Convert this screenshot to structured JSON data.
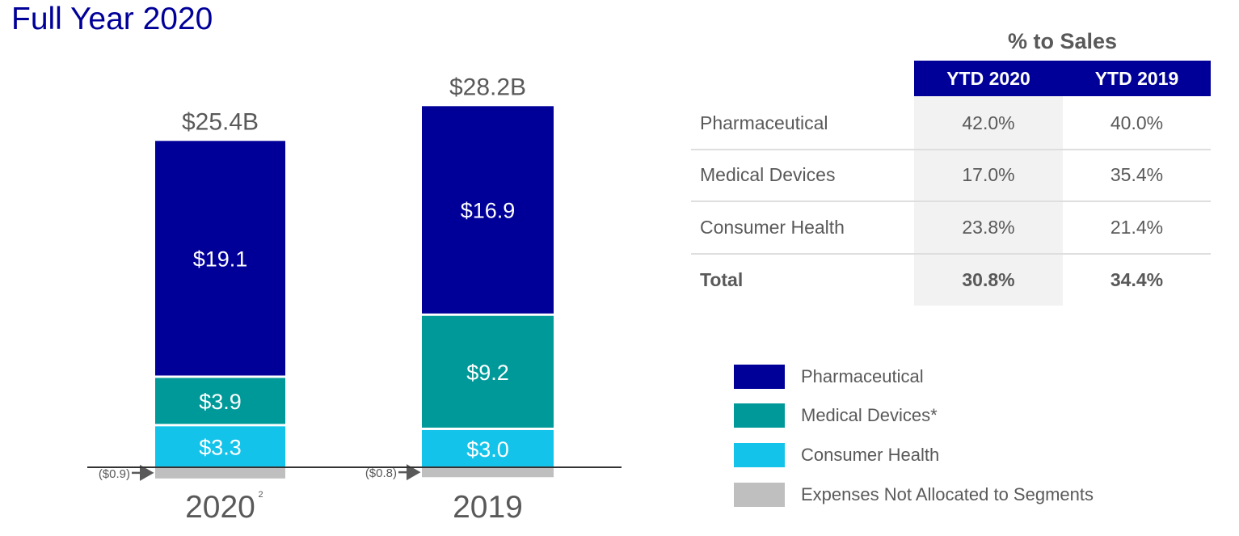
{
  "header": {
    "title": "Full Year 2020"
  },
  "colors": {
    "pharmaceutical": "#000099",
    "medical_devices": "#009999",
    "consumer_health": "#14c3ea",
    "expenses": "#bfbfbf",
    "label_text": "#595959"
  },
  "chart_data": {
    "type": "bar",
    "stacked": true,
    "title": "Full Year 2020",
    "xlabel": "",
    "ylabel": "",
    "categories": [
      "2020",
      "2019"
    ],
    "category_footnotes": [
      "2",
      ""
    ],
    "totals": [
      25.4,
      28.2
    ],
    "total_labels": [
      "$25.4B",
      "$28.2B"
    ],
    "series": [
      {
        "name": "Expenses Not Allocated to Segments",
        "key": "expenses",
        "values": [
          -0.9,
          -0.8
        ],
        "labels": [
          "($0.9)",
          "($0.8)"
        ]
      },
      {
        "name": "Consumer Health",
        "key": "consumer_health",
        "values": [
          3.3,
          3.0
        ],
        "labels": [
          "$3.3",
          "$3.0"
        ]
      },
      {
        "name": "Medical Devices*",
        "key": "medical_devices",
        "values": [
          3.9,
          9.2
        ],
        "labels": [
          "$3.9",
          "$9.2"
        ]
      },
      {
        "name": "Pharmaceutical",
        "key": "pharmaceutical",
        "values": [
          19.1,
          16.9
        ],
        "labels": [
          "$19.1",
          "$16.9"
        ]
      }
    ],
    "units": "$B",
    "grid": false,
    "legend_position": "bottom-right"
  },
  "table": {
    "caption": "% to Sales",
    "columns": [
      "YTD 2020",
      "YTD 2019"
    ],
    "rows": [
      {
        "label": "Pharmaceutical",
        "values": [
          "42.0%",
          "40.0%"
        ]
      },
      {
        "label": "Medical Devices",
        "values": [
          "17.0%",
          "35.4%"
        ]
      },
      {
        "label": "Consumer Health",
        "values": [
          "23.8%",
          "21.4%"
        ]
      },
      {
        "label": "Total",
        "values": [
          "30.8%",
          "34.4%"
        ]
      }
    ]
  },
  "legend": [
    {
      "label": "Pharmaceutical",
      "key": "pharmaceutical"
    },
    {
      "label": "Medical Devices*",
      "key": "medical_devices"
    },
    {
      "label": "Consumer Health",
      "key": "consumer_health"
    },
    {
      "label": "Expenses Not Allocated to Segments",
      "key": "expenses"
    }
  ]
}
